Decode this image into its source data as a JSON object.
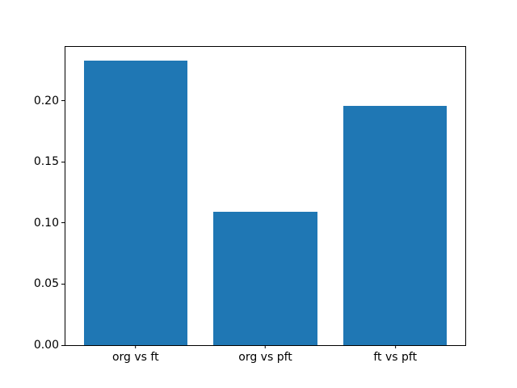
{
  "chart_data": {
    "type": "bar",
    "title": "",
    "xlabel": "",
    "ylabel": "",
    "categories": [
      "org vs ft",
      "org vs pft",
      "ft vs pft"
    ],
    "values": [
      0.233,
      0.109,
      0.196
    ],
    "bar_color": "#1f77b4",
    "ylim": [
      0,
      0.244
    ],
    "yticks": [
      0.0,
      0.05,
      0.1,
      0.15,
      0.2
    ],
    "ytick_labels": [
      "0.00",
      "0.05",
      "0.10",
      "0.15",
      "0.20"
    ],
    "grid": false,
    "legend": null
  }
}
